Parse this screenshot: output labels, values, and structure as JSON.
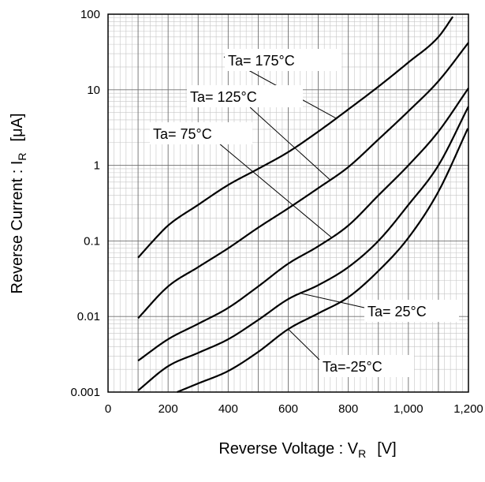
{
  "chart_data": {
    "type": "line",
    "title": "",
    "xlabel": "Reverse Voltage : V",
    "xlabel_sub": "R",
    "xlabel_unit": "[V]",
    "ylabel": "Reverse Current : I",
    "ylabel_sub": "R",
    "ylabel_unit": "[μA]",
    "xlim": [
      0,
      1200
    ],
    "ylim": [
      0.001,
      100
    ],
    "yscale": "log",
    "grid": true,
    "x_ticks": [
      0,
      200,
      400,
      600,
      800,
      1000,
      1200
    ],
    "x_tick_labels": [
      "0",
      "200",
      "400",
      "600",
      "800",
      "1,000",
      "1,200"
    ],
    "y_ticks": [
      0.001,
      0.01,
      0.1,
      1,
      10,
      100
    ],
    "y_tick_labels": [
      "0.001",
      "0.01",
      "0.1",
      "1",
      "10",
      "100"
    ],
    "series": [
      {
        "name": "Ta= 175°C",
        "x": [
          100,
          150,
          200,
          300,
          400,
          500,
          600,
          700,
          800,
          900,
          1000,
          1100,
          1150
        ],
        "y": [
          0.06,
          0.1,
          0.16,
          0.3,
          0.55,
          0.9,
          1.5,
          2.8,
          5.5,
          11,
          23,
          50,
          95
        ]
      },
      {
        "name": "Ta= 125°C",
        "x": [
          100,
          200,
          300,
          400,
          500,
          600,
          700,
          800,
          900,
          1000,
          1100,
          1200
        ],
        "y": [
          0.0095,
          0.025,
          0.045,
          0.08,
          0.15,
          0.27,
          0.5,
          0.95,
          2.2,
          5.2,
          13,
          42
        ]
      },
      {
        "name": "Ta= 75°C",
        "x": [
          100,
          200,
          300,
          400,
          500,
          600,
          700,
          800,
          900,
          1000,
          1100,
          1200
        ],
        "y": [
          0.0026,
          0.005,
          0.008,
          0.013,
          0.025,
          0.05,
          0.085,
          0.16,
          0.4,
          1.0,
          2.8,
          10.5
        ]
      },
      {
        "name": "Ta= 25°C",
        "x": [
          100,
          200,
          300,
          400,
          500,
          600,
          700,
          800,
          900,
          1000,
          1100,
          1200
        ],
        "y": [
          0.00105,
          0.0022,
          0.0033,
          0.005,
          0.009,
          0.017,
          0.026,
          0.045,
          0.1,
          0.3,
          1.0,
          6.0
        ]
      },
      {
        "name": "Ta=-25°C",
        "x": [
          230,
          300,
          400,
          500,
          600,
          700,
          800,
          900,
          1000,
          1100,
          1200
        ],
        "y": [
          0.001,
          0.0013,
          0.0019,
          0.0034,
          0.0068,
          0.011,
          0.018,
          0.04,
          0.11,
          0.45,
          3.2
        ]
      }
    ],
    "annotations": [
      {
        "text": "Ta= 175°C",
        "points_to_series": 0,
        "target_x": 760
      },
      {
        "text": "Ta= 125°C",
        "points_to_series": 1,
        "target_x": 740
      },
      {
        "text": "Ta= 75°C",
        "points_to_series": 2,
        "target_x": 745
      },
      {
        "text": "Ta= 25°C",
        "points_to_series": 3,
        "target_x": 640
      },
      {
        "text": "Ta=-25°C",
        "points_to_series": 4,
        "target_x": 600
      }
    ]
  }
}
